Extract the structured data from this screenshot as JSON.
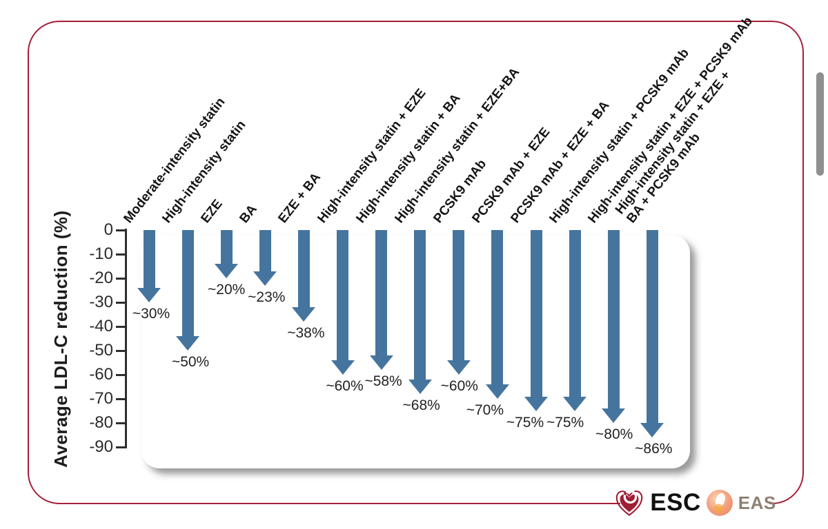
{
  "figure": {
    "border_color": "#a41e38",
    "scrollbar_color": "#8f8f8f"
  },
  "logos": {
    "esc_label": "ESC",
    "eas_label": "EAS",
    "esc_heart_color": "#9f1d35",
    "eas_text_color": "#8d8173"
  },
  "chart_data": {
    "type": "bar",
    "subtype": "downward-arrows",
    "ylabel": "Average LDL-C reduction (%)",
    "ylim": [
      0,
      -90
    ],
    "yticks": [
      0,
      -10,
      -20,
      -30,
      -40,
      -50,
      -60,
      -70,
      -80,
      -90
    ],
    "grid": false,
    "legend": false,
    "arrow_color": "#45759E",
    "categories": [
      "Moderate-intensity statin",
      "High-intensity statin",
      "EZE",
      "BA",
      "EZE + BA",
      "High-intensity statin + EZE",
      "High-intensity statin + BA",
      "High-intensity statin + EZE+BA",
      "PCSK9 mAb",
      "PCSK9 mAb + EZE",
      "PCSK9 mAb + EZE + BA",
      "High-intensity statin + PCSK9 mAb",
      "High-intensity statin + EZE + PCSK9 mAb",
      "High-intensity statin + EZE +\nBA + PCSK9 mAb"
    ],
    "values": [
      30,
      50,
      20,
      23,
      38,
      60,
      58,
      68,
      60,
      70,
      75,
      75,
      80,
      86
    ],
    "annotations": [
      "~30%",
      "~50%",
      "~20%",
      "~23%",
      "~38%",
      "~60%",
      "~58%",
      "~68%",
      "~60%",
      "~70%",
      "~75%",
      "~75%",
      "~80%",
      "~86%"
    ]
  }
}
